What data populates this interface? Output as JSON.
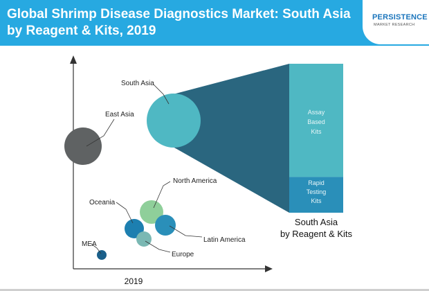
{
  "header": {
    "title": "Global Shrimp Disease Diagnostics Market: South Asia by Reagent & Kits, 2019"
  },
  "logo": {
    "name": "PERSISTENCE",
    "tagline": "MARKET RESEARCH"
  },
  "colors": {
    "header_bg": "#27a9e1",
    "south_asia": "#4fb8c3",
    "east_asia": "#5f6263",
    "north_america": "#8fcf9a",
    "oceania": "#1d7fb0",
    "latin_america": "#2a8fb9",
    "europe": "#7ab8b3",
    "mea": "#1a5f8a",
    "assay_bar": "#4fb8c3",
    "rapid_bar": "#2a8fb9",
    "cone": "#1f5e78"
  },
  "chart_data": [
    {
      "type": "scatter",
      "subtype": "bubble",
      "title": "",
      "xlabel": "",
      "ylabel": "",
      "x_ticks": [
        "2019"
      ],
      "series": [
        {
          "name": "South Asia",
          "relative_size": 1.0
        },
        {
          "name": "East Asia",
          "relative_size": 0.69
        },
        {
          "name": "North America",
          "relative_size": 0.45
        },
        {
          "name": "Latin America",
          "relative_size": 0.38
        },
        {
          "name": "Oceania",
          "relative_size": 0.36
        },
        {
          "name": "Europe",
          "relative_size": 0.28
        },
        {
          "name": "MEA",
          "relative_size": 0.18
        }
      ]
    },
    {
      "type": "bar",
      "stacked": true,
      "caption_lines": [
        "South Asia",
        "by Reagent & Kits"
      ],
      "categories": [
        "South Asia"
      ],
      "series": [
        {
          "name": "Assay Based Kits",
          "label_lines": [
            "Assay",
            "Based",
            "Kits"
          ],
          "share": 0.76
        },
        {
          "name": "Rapid Testing Kits",
          "label_lines": [
            "Rapid",
            "Testing",
            "Kits"
          ],
          "share": 0.24
        }
      ]
    }
  ]
}
